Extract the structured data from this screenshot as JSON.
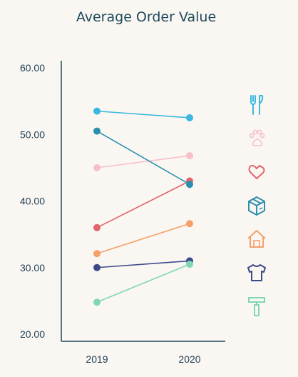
{
  "chart_data": {
    "type": "line",
    "title": "Average Order Value",
    "xlabel": "",
    "ylabel": "",
    "x": [
      "2019",
      "2020"
    ],
    "ylim": [
      20,
      60
    ],
    "yticks": [
      "20.00",
      "30.00",
      "40.00",
      "50.00",
      "60.00"
    ],
    "grid": false,
    "legend": "right (icons)",
    "series": [
      {
        "icon": "fork-knife-icon",
        "color": "#3bb8e0",
        "values": [
          53.5,
          52.5
        ]
      },
      {
        "icon": "paw-icon",
        "color": "#f7bfc8",
        "values": [
          45.0,
          46.8
        ]
      },
      {
        "icon": "heart-icon",
        "color": "#e2646c",
        "values": [
          36.0,
          43.0
        ]
      },
      {
        "icon": "box-icon",
        "color": "#2a8fae",
        "values": [
          50.5,
          42.5
        ]
      },
      {
        "icon": "house-icon",
        "color": "#f5a06a",
        "values": [
          32.1,
          36.6
        ]
      },
      {
        "icon": "shirt-icon",
        "color": "#3d4a8a",
        "values": [
          30.0,
          31.0
        ]
      },
      {
        "icon": "razor-icon",
        "color": "#7fd6b8",
        "values": [
          24.8,
          30.5
        ]
      }
    ]
  }
}
